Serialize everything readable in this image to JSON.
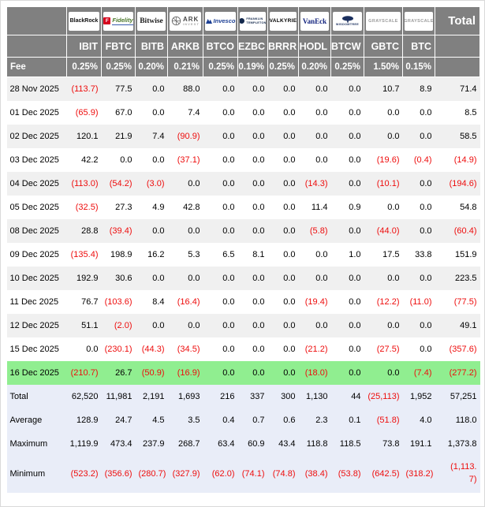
{
  "colors": {
    "header_bg": "#808080",
    "stripe_bg": "#f0f0f0",
    "highlight_bg": "#90EE90",
    "summary_bg": "#e9edf8",
    "negative_text": "#ee0d0d",
    "header_text": "#ffffff"
  },
  "chart_data": {
    "type": "table",
    "total_column_label": "Total",
    "fee_row_label": "Fee",
    "columns": [
      {
        "ticker": "IBIT",
        "fee": "0.25%",
        "issuer": "BlackRock",
        "logo": "blackrock",
        "logo_text": "BlackRock"
      },
      {
        "ticker": "FBTC",
        "fee": "0.25%",
        "issuer": "Fidelity",
        "logo": "fidelity",
        "logo_text": "Fidelity",
        "logo_icon_letter": "F"
      },
      {
        "ticker": "BITB",
        "fee": "0.20%",
        "issuer": "Bitwise",
        "logo": "bitwise",
        "logo_text": "Bitwise"
      },
      {
        "ticker": "ARKB",
        "fee": "0.21%",
        "issuer": "ARK Invest",
        "logo": "ark",
        "logo_text": "ARK",
        "logo_subtext": "INVEST"
      },
      {
        "ticker": "BTCO",
        "fee": "0.25%",
        "issuer": "Invesco",
        "logo": "invesco",
        "logo_text": "Invesco"
      },
      {
        "ticker": "EZBC",
        "fee": "0.19%",
        "issuer": "Franklin Templeton",
        "logo": "franklin",
        "logo_text": "FRANKLIN",
        "logo_subtext": "TEMPLETON"
      },
      {
        "ticker": "BRRR",
        "fee": "0.25%",
        "issuer": "Valkyrie",
        "logo": "valkyrie",
        "logo_text": "VALKYRIE"
      },
      {
        "ticker": "HODL",
        "fee": "0.20%",
        "issuer": "VanEck",
        "logo": "vaneck",
        "logo_text": "VanEck"
      },
      {
        "ticker": "BTCW",
        "fee": "0.25%",
        "issuer": "WisdomTree",
        "logo": "wisdomtree",
        "logo_text": "WISDOMTREE"
      },
      {
        "ticker": "GBTC",
        "fee": "1.50%",
        "issuer": "Grayscale",
        "logo": "grayscale",
        "logo_text": "GRAYSCALE"
      },
      {
        "ticker": "BTC",
        "fee": "0.15%",
        "issuer": "Grayscale",
        "logo": "grayscale",
        "logo_text": "GRAYSCALE"
      }
    ],
    "rows": [
      {
        "date": "28 Nov 2025",
        "highlight": false,
        "values": [
          "(113.7)",
          "77.5",
          "0.0",
          "88.0",
          "0.0",
          "0.0",
          "0.0",
          "0.0",
          "0.0",
          "10.7",
          "8.9",
          "71.4"
        ]
      },
      {
        "date": "01 Dec 2025",
        "highlight": false,
        "values": [
          "(65.9)",
          "67.0",
          "0.0",
          "7.4",
          "0.0",
          "0.0",
          "0.0",
          "0.0",
          "0.0",
          "0.0",
          "0.0",
          "8.5"
        ]
      },
      {
        "date": "02 Dec 2025",
        "highlight": false,
        "values": [
          "120.1",
          "21.9",
          "7.4",
          "(90.9)",
          "0.0",
          "0.0",
          "0.0",
          "0.0",
          "0.0",
          "0.0",
          "0.0",
          "58.5"
        ]
      },
      {
        "date": "03 Dec 2025",
        "highlight": false,
        "values": [
          "42.2",
          "0.0",
          "0.0",
          "(37.1)",
          "0.0",
          "0.0",
          "0.0",
          "0.0",
          "0.0",
          "(19.6)",
          "(0.4)",
          "(14.9)"
        ]
      },
      {
        "date": "04 Dec 2025",
        "highlight": false,
        "values": [
          "(113.0)",
          "(54.2)",
          "(3.0)",
          "0.0",
          "0.0",
          "0.0",
          "0.0",
          "(14.3)",
          "0.0",
          "(10.1)",
          "0.0",
          "(194.6)"
        ]
      },
      {
        "date": "05 Dec 2025",
        "highlight": false,
        "values": [
          "(32.5)",
          "27.3",
          "4.9",
          "42.8",
          "0.0",
          "0.0",
          "0.0",
          "11.4",
          "0.9",
          "0.0",
          "0.0",
          "54.8"
        ]
      },
      {
        "date": "08 Dec 2025",
        "highlight": false,
        "values": [
          "28.8",
          "(39.4)",
          "0.0",
          "0.0",
          "0.0",
          "0.0",
          "0.0",
          "(5.8)",
          "0.0",
          "(44.0)",
          "0.0",
          "(60.4)"
        ]
      },
      {
        "date": "09 Dec 2025",
        "highlight": false,
        "values": [
          "(135.4)",
          "198.9",
          "16.2",
          "5.3",
          "6.5",
          "8.1",
          "0.0",
          "0.0",
          "1.0",
          "17.5",
          "33.8",
          "151.9"
        ]
      },
      {
        "date": "10 Dec 2025",
        "highlight": false,
        "values": [
          "192.9",
          "30.6",
          "0.0",
          "0.0",
          "0.0",
          "0.0",
          "0.0",
          "0.0",
          "0.0",
          "0.0",
          "0.0",
          "223.5"
        ]
      },
      {
        "date": "11 Dec 2025",
        "highlight": false,
        "values": [
          "76.7",
          "(103.6)",
          "8.4",
          "(16.4)",
          "0.0",
          "0.0",
          "0.0",
          "(19.4)",
          "0.0",
          "(12.2)",
          "(11.0)",
          "(77.5)"
        ]
      },
      {
        "date": "12 Dec 2025",
        "highlight": false,
        "values": [
          "51.1",
          "(2.0)",
          "0.0",
          "0.0",
          "0.0",
          "0.0",
          "0.0",
          "0.0",
          "0.0",
          "0.0",
          "0.0",
          "49.1"
        ]
      },
      {
        "date": "15 Dec 2025",
        "highlight": false,
        "values": [
          "0.0",
          "(230.1)",
          "(44.3)",
          "(34.5)",
          "0.0",
          "0.0",
          "0.0",
          "(21.2)",
          "0.0",
          "(27.5)",
          "0.0",
          "(357.6)"
        ]
      },
      {
        "date": "16 Dec 2025",
        "highlight": true,
        "values": [
          "(210.7)",
          "26.7",
          "(50.9)",
          "(16.9)",
          "0.0",
          "0.0",
          "0.0",
          "(18.0)",
          "0.0",
          "0.0",
          "(7.4)",
          "(277.2)"
        ]
      }
    ],
    "summary_rows": [
      {
        "label": "Total",
        "values": [
          "62,520",
          "11,981",
          "2,191",
          "1,693",
          "216",
          "337",
          "300",
          "1,130",
          "44",
          "(25,113)",
          "1,952",
          "57,251"
        ]
      },
      {
        "label": "Average",
        "values": [
          "128.9",
          "24.7",
          "4.5",
          "3.5",
          "0.4",
          "0.7",
          "0.6",
          "2.3",
          "0.1",
          "(51.8)",
          "4.0",
          "118.0"
        ]
      },
      {
        "label": "Maximum",
        "values": [
          "1,119.9",
          "473.4",
          "237.9",
          "268.7",
          "63.4",
          "60.9",
          "43.4",
          "118.8",
          "118.5",
          "73.8",
          "191.1",
          "1,373.8"
        ]
      },
      {
        "label": "Minimum",
        "values": [
          "(523.2)",
          "(356.6)",
          "(280.7)",
          "(327.9)",
          "(62.0)",
          "(74.1)",
          "(74.8)",
          "(38.4)",
          "(53.8)",
          "(642.5)",
          "(318.2)",
          "(1,113.7)"
        ]
      }
    ]
  }
}
